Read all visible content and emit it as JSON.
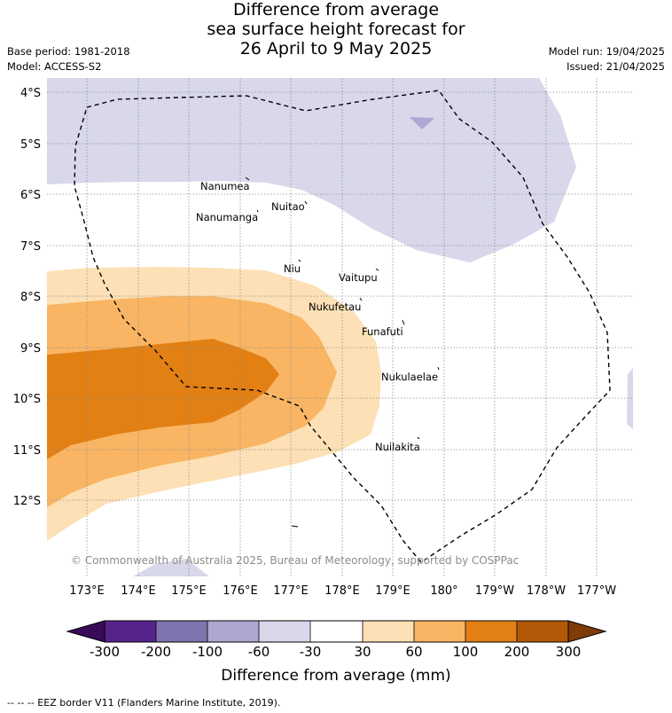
{
  "header": {
    "title_line1": "Difference from average",
    "title_line2": "sea surface height forecast for",
    "title_line3": "26 April to 9 May 2025",
    "base_period": "Base period: 1981-2018",
    "model": "Model: ACCESS-S2",
    "model_run": "Model run: 19/04/2025",
    "issued": "Issued: 21/04/2025"
  },
  "map": {
    "lat_labels": [
      "4°S",
      "5°S",
      "6°S",
      "7°S",
      "8°S",
      "9°S",
      "10°S",
      "11°S",
      "12°S"
    ],
    "lon_labels": [
      "173°E",
      "174°E",
      "175°E",
      "176°E",
      "177°E",
      "178°E",
      "179°E",
      "180°",
      "179°W",
      "178°W",
      "177°W"
    ],
    "places": [
      "Nanumea",
      "Nuitao",
      "Nanumanga",
      "Niu",
      "Vaitupu",
      "Nukufetau",
      "Funafuti",
      "Nukulaelae",
      "Nuilakita"
    ],
    "copyright": "© Commonwealth of Australia 2025, Bureau of Meteorology, supported by COSPPac",
    "colors": {
      "neg_300": "#3a0a5a",
      "neg_200": "#55238a",
      "neg_100": "#7f74ad",
      "neg_60": "#aca8d1",
      "neg_30": "#d8d8ea",
      "neutral": "#ffffff",
      "pos_30": "#fde0b5",
      "pos_60": "#f9b563",
      "pos_100": "#e28014",
      "pos_200": "#b35806",
      "pos_300": "#7f3b08"
    }
  },
  "colorbar": {
    "ticks": [
      "-300",
      "-200",
      "-100",
      "-60",
      "-30",
      "30",
      "60",
      "100",
      "200",
      "300"
    ],
    "title": "Difference from average (mm)"
  },
  "footer": {
    "legend_text": "--  --  -- EEZ border V11 (Flanders Marine Institute, 2019)."
  }
}
